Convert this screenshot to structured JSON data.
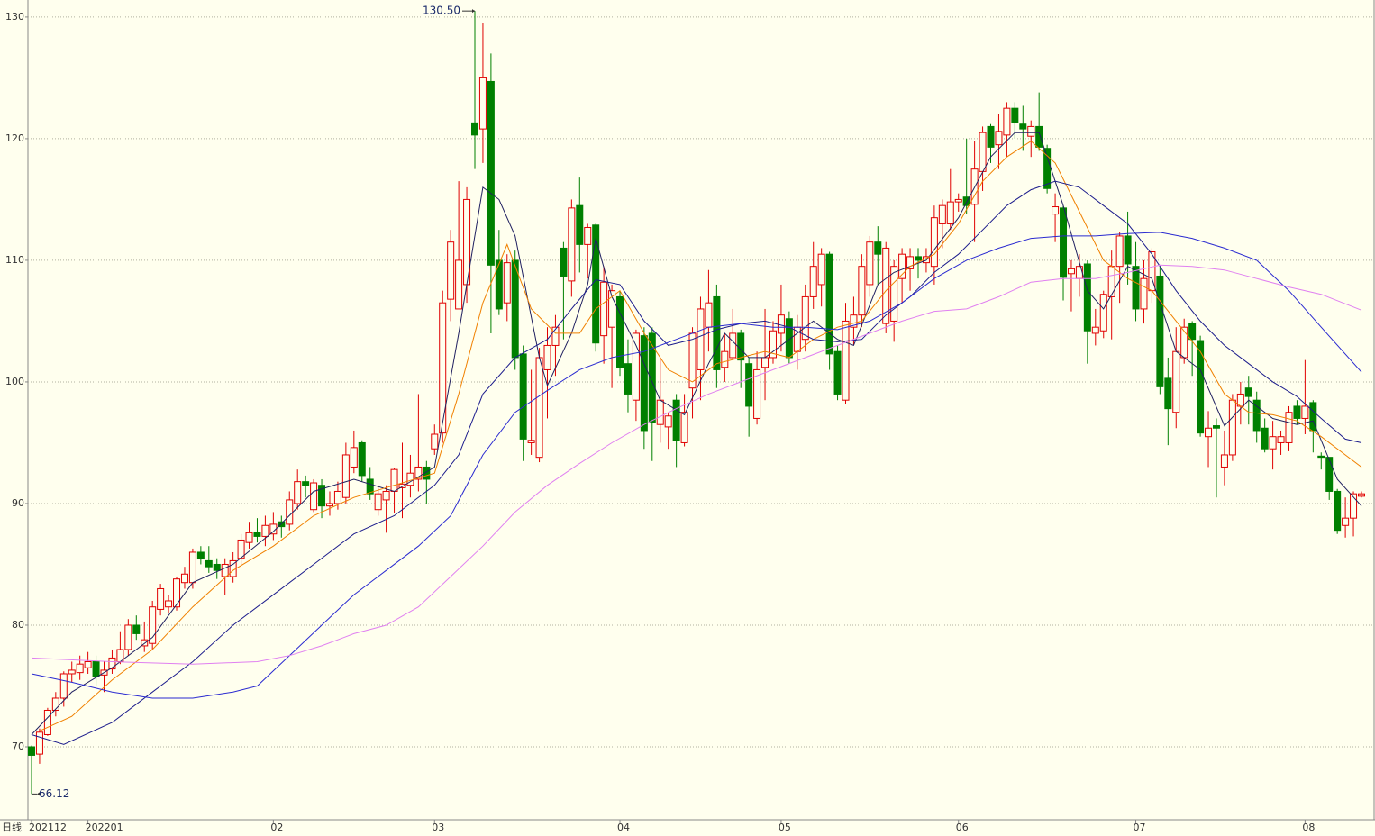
{
  "chart_data": {
    "type": "candlestick",
    "label": "日线",
    "categories": [
      "202112",
      null,
      null,
      null,
      null,
      null,
      null,
      "202201",
      null,
      null,
      null,
      null,
      null,
      null,
      null,
      null,
      null,
      null,
      null,
      null,
      null,
      null,
      null,
      null,
      null,
      null,
      null,
      null,
      null,
      null,
      "02",
      null,
      null,
      null,
      null,
      null,
      null,
      null,
      null,
      null,
      null,
      null,
      null,
      null,
      null,
      null,
      null,
      null,
      null,
      null,
      "03",
      null,
      null,
      null,
      null,
      null,
      null,
      null,
      null,
      null,
      null,
      null,
      null,
      null,
      null,
      null,
      null,
      null,
      null,
      null,
      null,
      null,
      null,
      "04",
      null,
      null,
      null,
      null,
      null,
      null,
      null,
      null,
      null,
      null,
      null,
      null,
      null,
      null,
      null,
      null,
      null,
      null,
      null,
      "05",
      null,
      null,
      null,
      null,
      null,
      null,
      null,
      null,
      null,
      null,
      null,
      null,
      null,
      null,
      null,
      null,
      null,
      null,
      null,
      null,
      null,
      "06",
      null,
      null,
      null,
      null,
      null,
      null,
      null,
      null,
      null,
      null,
      null,
      null,
      null,
      null,
      null,
      null,
      null,
      null,
      null,
      null,
      null,
      "07",
      null,
      null,
      null,
      null,
      null,
      null,
      null,
      null,
      null,
      null,
      null,
      null,
      null,
      null,
      null,
      null,
      null,
      null,
      null,
      null,
      "08",
      null,
      null,
      null,
      null,
      null,
      null,
      null
    ],
    "open": [
      70,
      69.4,
      71,
      73,
      74,
      76,
      76.1,
      76.5,
      77,
      75.9,
      76.4,
      77,
      78,
      80,
      78.3,
      78.5,
      81.3,
      81.5,
      81.5,
      83.5,
      83.5,
      86,
      85.3,
      85,
      84,
      84,
      85.5,
      86.8,
      87.6,
      87.3,
      87.5,
      88.5,
      88.3,
      90,
      91.8,
      89.5,
      91.5,
      89.8,
      90,
      90.5,
      93,
      95,
      92,
      89.5,
      90.3,
      91,
      91.3,
      91.5,
      92,
      93,
      94.5,
      95.8,
      106.8,
      106,
      108,
      121.3,
      120.8,
      124.7,
      110,
      106.5,
      110,
      102.3,
      95,
      93.8,
      101,
      103,
      111,
      108.3,
      114.5,
      111.3,
      112.9,
      103.8,
      104.5,
      107,
      101.5,
      98.5,
      103.8,
      104,
      96.5,
      96.3,
      98.5,
      95,
      99.5,
      101,
      104.5,
      107,
      101.2,
      102,
      104,
      101.5,
      97,
      101.2,
      102,
      104,
      105.2,
      102.5,
      103.5,
      107,
      108,
      110.5,
      102.5,
      98.5,
      104.5,
      105.5,
      108,
      111.5,
      104.8,
      105,
      108.5,
      109.3,
      110.3,
      109.8,
      109.5,
      113,
      113,
      114.8,
      115.2,
      114.6,
      117.3,
      121,
      119.5,
      120.3,
      122.5,
      121.2,
      120.2,
      121,
      119.2,
      113.8,
      114.3,
      108.9,
      108.5,
      109.7,
      104,
      104.2,
      107,
      109.5,
      112,
      109.5,
      106,
      107.5,
      108.7,
      100.3,
      97.5,
      102,
      104.8,
      103.4,
      95.5,
      96.4,
      93,
      94,
      98,
      99.5,
      98.5,
      96.2,
      94.5,
      95,
      95,
      98,
      97,
      98.3,
      93.9,
      93.8,
      91,
      88.2,
      88.8,
      90.6
    ],
    "high": [
      70.1,
      71.5,
      73.2,
      74.5,
      76.2,
      77,
      77.5,
      77.8,
      77.5,
      77,
      78,
      79.5,
      80.5,
      80.8,
      80.3,
      82,
      83.4,
      82.5,
      84,
      84.8,
      86.3,
      86.5,
      86.5,
      85.5,
      85.5,
      86,
      87.5,
      88.5,
      88.8,
      89,
      89.3,
      89,
      91,
      92.8,
      92.3,
      92,
      92,
      91,
      91.8,
      95,
      96,
      95.2,
      93,
      91.5,
      91.5,
      92.9,
      95,
      94,
      99,
      93.5,
      96.5,
      107.5,
      112.5,
      116.5,
      116,
      130.5,
      129.5,
      127,
      112.5,
      110.5,
      110.8,
      103,
      101,
      102.8,
      104.5,
      105.5,
      111.5,
      115,
      116.8,
      113,
      113,
      109.5,
      108,
      107.5,
      103.5,
      104.3,
      104.5,
      104.5,
      102,
      97.5,
      99,
      99,
      104.5,
      107,
      109.2,
      108,
      104,
      106,
      104.3,
      102,
      102.5,
      106,
      105,
      108,
      105.8,
      105.5,
      108,
      111.5,
      111,
      110.7,
      103,
      106.5,
      107,
      110.5,
      112,
      112.8,
      111.5,
      110,
      111,
      111,
      111,
      111,
      114.5,
      115,
      117.5,
      115.5,
      120,
      119.8,
      121,
      121.2,
      122,
      123,
      123,
      122.7,
      121.5,
      123.8,
      119.5,
      115.5,
      114.5,
      110,
      110.5,
      110,
      106,
      107.5,
      110.8,
      112.3,
      114,
      111.5,
      110,
      111,
      109.5,
      102,
      104.5,
      105.2,
      105,
      103.8,
      97.6,
      97,
      96,
      99,
      100,
      100.5,
      99.2,
      97,
      96.8,
      96,
      98,
      98.5,
      101.8,
      98.5,
      94.2,
      93.8,
      91.2,
      90.5,
      91,
      91
    ],
    "low": [
      66.12,
      68.6,
      70.9,
      72.5,
      73.3,
      75.3,
      75.5,
      76,
      75,
      74.5,
      76,
      76.8,
      77.5,
      78.8,
      77.8,
      78,
      80.8,
      81,
      81.2,
      83,
      83,
      85,
      84.3,
      83.8,
      82.5,
      83.5,
      85,
      86.3,
      86.8,
      86.5,
      87,
      87.2,
      87.8,
      89.5,
      90.5,
      89.3,
      88.8,
      89,
      89.5,
      90,
      92.5,
      91.8,
      90.3,
      89,
      87.6,
      89.2,
      88.8,
      90.5,
      91,
      90,
      94,
      95,
      105,
      106,
      106.5,
      117.5,
      118,
      104,
      105.5,
      105,
      101,
      93.5,
      94,
      93.4,
      97,
      100.5,
      103.5,
      107,
      109,
      108.5,
      102.5,
      101.5,
      99.5,
      100.5,
      97.5,
      96.8,
      94.5,
      93.5,
      95,
      94.5,
      93,
      94.7,
      97,
      98.5,
      102.5,
      99.5,
      100,
      101.8,
      99.5,
      95.5,
      96.5,
      98.5,
      101.5,
      102.5,
      101.5,
      101,
      102.5,
      106,
      106.2,
      101,
      98.5,
      98.2,
      103,
      104.5,
      107,
      108,
      104,
      103.3,
      106.5,
      107.5,
      108.5,
      109,
      108,
      111,
      112.5,
      114,
      113.8,
      111.5,
      115.7,
      118,
      117.5,
      118.5,
      120,
      119,
      118.5,
      119,
      115.5,
      111.5,
      106.7,
      105.8,
      107,
      101.5,
      103,
      103.6,
      103.5,
      106.5,
      108,
      105,
      104.8,
      106.5,
      99,
      94.8,
      96.2,
      101.5,
      100.5,
      95.5,
      93,
      90.5,
      91.5,
      93.5,
      96.5,
      96.5,
      95,
      94.2,
      92.8,
      94,
      94.3,
      96.5,
      95.7,
      94.2,
      92.8,
      90.3,
      87.5,
      87.2,
      87.3,
      90.5
    ],
    "close": [
      69.3,
      71.2,
      73,
      74,
      76,
      76.3,
      76.8,
      77,
      75.8,
      76.3,
      77.3,
      78,
      80,
      79.3,
      78.8,
      81.5,
      83,
      82,
      83.8,
      84.2,
      86,
      85.5,
      84.8,
      84.5,
      85,
      85.3,
      87,
      87.6,
      87.3,
      88.2,
      88.3,
      88.1,
      90.3,
      91.8,
      91.5,
      91.7,
      89.8,
      90,
      91,
      94,
      94.6,
      92.3,
      90.8,
      90.8,
      91,
      92.8,
      91.6,
      92.5,
      93,
      92,
      95.7,
      106.5,
      111.5,
      110,
      115,
      120.3,
      125,
      109.6,
      106,
      109.8,
      102,
      95.3,
      95.2,
      102,
      103,
      104.5,
      108.7,
      114.3,
      111.3,
      112.7,
      103.2,
      108.2,
      107.5,
      101.2,
      99,
      104,
      96,
      96.7,
      98.5,
      97.2,
      95.2,
      97.5,
      104,
      106,
      106.5,
      101,
      102.5,
      104,
      101.8,
      98,
      101,
      102,
      104.2,
      105.5,
      102,
      104.5,
      107,
      109.5,
      110.5,
      102.3,
      99,
      105,
      105.5,
      109.5,
      111.5,
      110.5,
      111,
      109.5,
      110.5,
      110.3,
      110,
      110.3,
      113.5,
      114.5,
      114.8,
      115,
      114.5,
      117.5,
      120.5,
      119.3,
      120.6,
      122.5,
      121.3,
      120.8,
      121,
      119.3,
      115.9,
      114.4,
      108.6,
      109.3,
      109.5,
      104.2,
      104.5,
      107.2,
      109.5,
      112,
      109.7,
      106,
      108.5,
      110.7,
      99.6,
      97.8,
      102.5,
      104.5,
      103.5,
      95.8,
      96.2,
      96.2,
      94,
      98.5,
      99,
      98.8,
      96,
      94.5,
      95.5,
      95.5,
      97.5,
      97,
      98,
      96,
      93.8,
      91,
      87.8,
      88.8,
      90.8,
      90.8
    ],
    "up_color": "#e00000",
    "down_color": "#008000",
    "series": [
      {
        "color": "#202060",
        "x": [
          0,
          5,
          10,
          15,
          20,
          25,
          30,
          35,
          40,
          45,
          50,
          53,
          56,
          58,
          60,
          63,
          64,
          67,
          69,
          70,
          72,
          75,
          78,
          81,
          84,
          86,
          89,
          91,
          94,
          97,
          100,
          102,
          105,
          107,
          111,
          115,
          119,
          122,
          125,
          128,
          131,
          133,
          136,
          139,
          142,
          145,
          148,
          151,
          154,
          157,
          159,
          162,
          165
        ],
        "values": [
          71,
          74.5,
          76.5,
          79,
          83.5,
          85,
          87.7,
          91,
          92,
          91,
          93,
          104,
          116,
          115,
          112,
          102,
          99.7,
          104,
          108,
          111.8,
          107,
          103,
          98.5,
          97.3,
          101.5,
          104,
          102,
          102,
          103.5,
          105,
          103.5,
          103,
          108,
          109,
          110,
          113.5,
          118.5,
          120.5,
          120.5,
          114.5,
          107.5,
          106,
          109.5,
          108.5,
          102.5,
          101,
          96.4,
          98.5,
          97,
          96.5,
          96.8,
          92,
          89.8
        ]
      },
      {
        "color": "#f08000",
        "x": [
          1,
          5,
          10,
          15,
          20,
          25,
          30,
          35,
          40,
          45,
          50,
          53,
          56,
          59,
          62,
          65,
          68,
          70,
          73,
          76,
          79,
          82,
          85,
          88,
          91,
          94,
          97,
          100,
          103,
          106,
          109,
          112,
          115,
          118,
          121,
          124,
          127,
          130,
          133,
          136,
          139,
          142,
          145,
          148,
          151,
          154,
          157,
          160,
          163,
          165
        ],
        "values": [
          71.3,
          72.5,
          75.5,
          78,
          81.5,
          84.5,
          86.5,
          89,
          90.5,
          91.5,
          92.5,
          99,
          106.5,
          111.3,
          106,
          104,
          104,
          106,
          107.5,
          104,
          101,
          100,
          101.5,
          102,
          102.5,
          102,
          103.5,
          104.5,
          105,
          107.5,
          109.5,
          110.5,
          113,
          116.5,
          118.5,
          119.8,
          118,
          114,
          110,
          108.5,
          107.5,
          105,
          102.5,
          99,
          97.5,
          97.3,
          96.8,
          95.5,
          94,
          93
        ]
      },
      {
        "color": "#1c1c8c",
        "x": [
          0,
          4,
          10,
          15,
          20,
          25,
          30,
          35,
          40,
          45,
          50,
          53,
          56,
          60,
          64,
          67,
          70,
          73,
          76,
          79,
          82,
          85,
          88,
          91,
          94,
          97,
          100,
          103,
          106,
          109,
          112,
          115,
          118,
          121,
          124,
          127,
          130,
          133,
          136,
          139,
          142,
          145,
          148,
          151,
          154,
          157,
          160,
          163,
          165
        ],
        "values": [
          71,
          70.2,
          72,
          74.5,
          77,
          80,
          82.5,
          85,
          87.5,
          89,
          91.5,
          94,
          99,
          102,
          103.5,
          106,
          108.4,
          108,
          105,
          103,
          103.5,
          104.3,
          104.8,
          105,
          104.5,
          103.5,
          103.3,
          103.5,
          105.5,
          107,
          109,
          110.5,
          112.5,
          114.5,
          115.8,
          116.5,
          116,
          114.5,
          113,
          110.5,
          107.5,
          105,
          103,
          101.5,
          100,
          98.8,
          97,
          95.3,
          95
        ]
      },
      {
        "color": "#2a2ad0",
        "x": [
          0,
          5,
          10,
          15,
          20,
          25,
          28,
          32,
          36,
          40,
          44,
          48,
          52,
          56,
          60,
          64,
          68,
          72,
          76,
          80,
          84,
          88,
          92,
          96,
          100,
          104,
          108,
          112,
          116,
          120,
          124,
          128,
          132,
          136,
          140,
          144,
          148,
          152,
          156,
          160,
          165
        ],
        "values": [
          76,
          75.3,
          74.5,
          74,
          74,
          74.5,
          75,
          77.5,
          80,
          82.5,
          84.5,
          86.5,
          89,
          94,
          97.5,
          99.3,
          101,
          102,
          102.5,
          103.5,
          104.5,
          104.8,
          104.5,
          104.5,
          104.3,
          105,
          106.5,
          108.5,
          110,
          111,
          111.8,
          112,
          112,
          112.2,
          112.3,
          111.8,
          111,
          110,
          107.5,
          104.5,
          100.8
        ]
      },
      {
        "color": "#e080f0",
        "x": [
          0,
          10,
          20,
          28,
          32,
          36,
          40,
          44,
          48,
          52,
          56,
          60,
          64,
          68,
          72,
          76,
          80,
          84,
          88,
          92,
          96,
          100,
          104,
          108,
          112,
          116,
          120,
          124,
          128,
          132,
          136,
          140,
          144,
          148,
          152,
          156,
          160,
          165
        ],
        "values": [
          77.3,
          77,
          76.8,
          77,
          77.5,
          78.3,
          79.3,
          80,
          81.5,
          84,
          86.5,
          89.3,
          91.5,
          93.3,
          95,
          96.5,
          97.8,
          99,
          100,
          101,
          102,
          103,
          104,
          105,
          105.8,
          106,
          107,
          108.2,
          108.5,
          108.5,
          109,
          109.6,
          109.5,
          109.2,
          108.5,
          107.8,
          107.2,
          105.9
        ]
      }
    ],
    "annotations": [
      {
        "x": 55,
        "y": {
          "value": 130.5,
          "label": "130.50"
        },
        "side": "left"
      },
      {
        "x": 0,
        "y": {
          "value": 66.12,
          "label": "66.12"
        },
        "side": "right"
      }
    ],
    "ylim": [
      64,
      131.4
    ],
    "yticks": [
      70,
      80,
      90,
      100,
      110,
      120,
      130
    ],
    "grid": true
  }
}
